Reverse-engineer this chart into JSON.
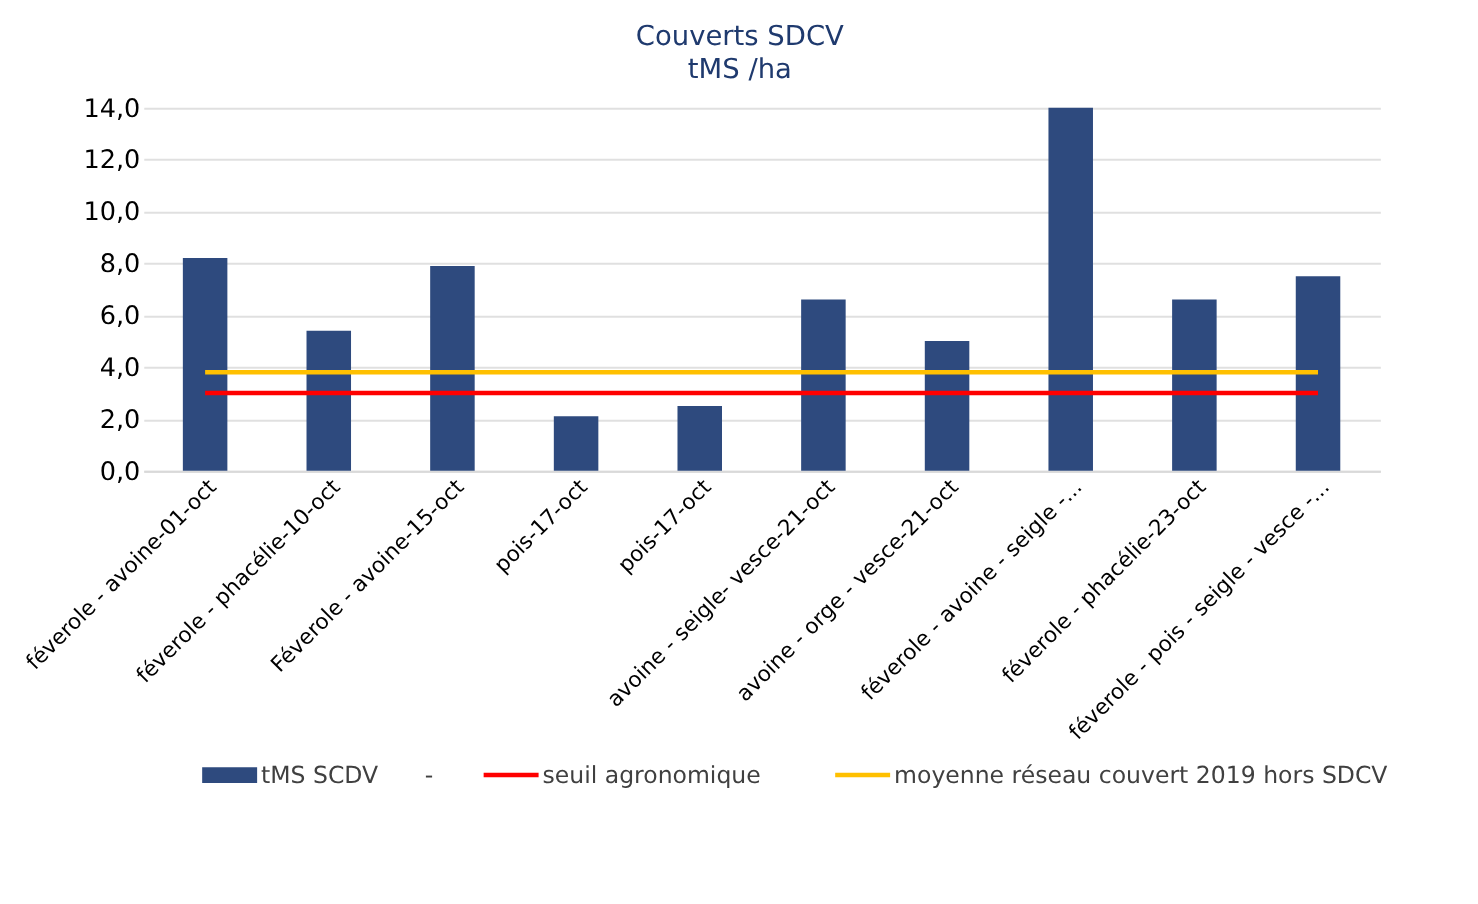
{
  "chart_data": {
    "type": "bar",
    "title": "Couverts SDCV",
    "subtitle": "tMS /ha",
    "categories": [
      "féverole - avoine-01-oct",
      "féverole - phacélie-10-oct",
      "Féverole - avoine-15-oct",
      "pois-17-oct",
      "pois-17-oct",
      "avoine - seigle- vesce-21-oct",
      "avoine - orge - vesce-21-oct",
      "féverole - avoine - seigle -...",
      "féverole - phacélie-23-oct",
      "féverole - pois - seigle - vesce -..."
    ],
    "series": [
      {
        "name": "tMS SCDV",
        "color": "#2e4a7e",
        "values": [
          8.2,
          5.4,
          7.9,
          2.1,
          2.5,
          6.6,
          5.0,
          14.0,
          6.6,
          7.5
        ]
      },
      {
        "name": "seuil agronomique",
        "type": "line",
        "color": "#ff0000",
        "values": [
          3.0,
          3.0,
          3.0,
          3.0,
          3.0,
          3.0,
          3.0,
          3.0,
          3.0,
          3.0
        ]
      },
      {
        "name": "moyenne réseau couvert 2019 hors SDCV",
        "type": "line",
        "color": "#ffc000",
        "values": [
          3.8,
          3.8,
          3.8,
          3.8,
          3.8,
          3.8,
          3.8,
          3.8,
          3.8,
          3.8
        ]
      }
    ],
    "annotations": [
      "-"
    ],
    "ylim": [
      0,
      14
    ],
    "yticks": [
      {
        "value": 0,
        "label": "0,0"
      },
      {
        "value": 2,
        "label": "2,0"
      },
      {
        "value": 4,
        "label": "4,0"
      },
      {
        "value": 6,
        "label": "6,0"
      },
      {
        "value": 8,
        "label": "8,0"
      },
      {
        "value": 10,
        "label": "10,0"
      },
      {
        "value": 12,
        "label": "12,0"
      },
      {
        "value": 14,
        "label": "14,0"
      }
    ],
    "grid": "y",
    "legend": "bottom",
    "marker": "none",
    "line_style": "solid"
  }
}
